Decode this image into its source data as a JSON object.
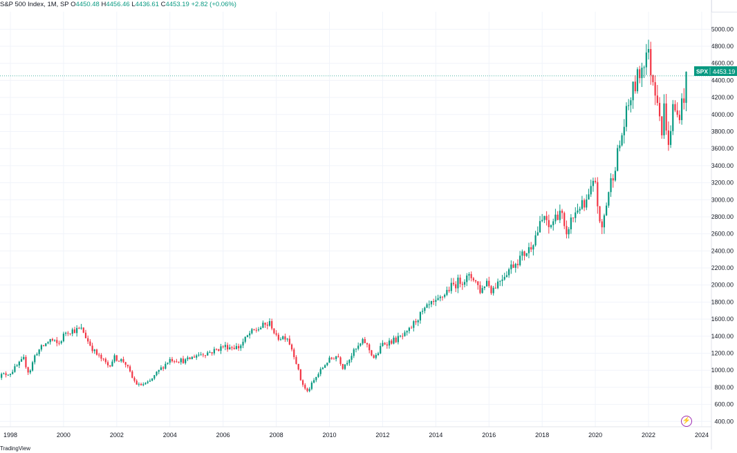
{
  "legend": {
    "title": "S&P 500 Index, 1M, SP",
    "open_label": "O",
    "open": "4450.48",
    "high_label": "H",
    "high": "4456.46",
    "low_label": "L",
    "low": "4436.61",
    "close_label": "C",
    "close": "4453.19",
    "change": "+2.82 (+0.06%)"
  },
  "price_tag": {
    "symbol": "SPX",
    "value": "4453.19"
  },
  "footer": {
    "brand": "TradingView"
  },
  "icons": {
    "lightning": "lightning-icon"
  },
  "colors": {
    "up": "#089981",
    "down": "#f23645",
    "grid": "#f0f3fa",
    "accent": "#9c27b0"
  },
  "chart_data": {
    "type": "candlestick",
    "title": "S&P 500 Index, 1M, SP",
    "xlabel": "",
    "ylabel": "",
    "ylim": [
      250,
      5100
    ],
    "xlim": [
      1997.5,
      2024.3
    ],
    "y_ticks": [
      "400.00",
      "600.00",
      "800.00",
      "1000.00",
      "1200.00",
      "1400.00",
      "1600.00",
      "1800.00",
      "2000.00",
      "2200.00",
      "2400.00",
      "2600.00",
      "2800.00",
      "3000.00",
      "3200.00",
      "3400.00",
      "3600.00",
      "3800.00",
      "4000.00",
      "4200.00",
      "4400.00",
      "4600.00",
      "4800.00",
      "5000.00"
    ],
    "x_ticks": [
      "1998",
      "2000",
      "2002",
      "2004",
      "2006",
      "2008",
      "2010",
      "2012",
      "2014",
      "2016",
      "2018",
      "2020",
      "2022",
      "2024"
    ],
    "last_close": 4453.19,
    "series_close": [
      [
        1997.5,
        930
      ],
      [
        1998.0,
        970
      ],
      [
        1998.5,
        1130
      ],
      [
        1998.7,
        960
      ],
      [
        1998.95,
        1200
      ],
      [
        1999.5,
        1360
      ],
      [
        1999.8,
        1300
      ],
      [
        2000.1,
        1460
      ],
      [
        2000.7,
        1480
      ],
      [
        2000.9,
        1350
      ],
      [
        2001.2,
        1200
      ],
      [
        2001.7,
        1050
      ],
      [
        2001.9,
        1150
      ],
      [
        2002.3,
        1100
      ],
      [
        2002.6,
        900
      ],
      [
        2002.8,
        820
      ],
      [
        2003.2,
        850
      ],
      [
        2003.6,
        1000
      ],
      [
        2004.0,
        1130
      ],
      [
        2004.6,
        1110
      ],
      [
        2005.0,
        1180
      ],
      [
        2005.6,
        1220
      ],
      [
        2006.0,
        1280
      ],
      [
        2006.6,
        1270
      ],
      [
        2007.0,
        1430
      ],
      [
        2007.5,
        1520
      ],
      [
        2007.8,
        1550
      ],
      [
        2008.0,
        1380
      ],
      [
        2008.4,
        1400
      ],
      [
        2008.7,
        1160
      ],
      [
        2008.9,
        900
      ],
      [
        2009.15,
        740
      ],
      [
        2009.5,
        920
      ],
      [
        2009.9,
        1100
      ],
      [
        2010.3,
        1180
      ],
      [
        2010.5,
        1040
      ],
      [
        2010.9,
        1210
      ],
      [
        2011.3,
        1350
      ],
      [
        2011.7,
        1130
      ],
      [
        2012.0,
        1310
      ],
      [
        2012.5,
        1360
      ],
      [
        2012.9,
        1420
      ],
      [
        2013.3,
        1610
      ],
      [
        2013.8,
        1770
      ],
      [
        2014.0,
        1780
      ],
      [
        2014.5,
        1960
      ],
      [
        2014.9,
        2050
      ],
      [
        2015.4,
        2100
      ],
      [
        2015.7,
        1920
      ],
      [
        2015.9,
        2060
      ],
      [
        2016.1,
        1940
      ],
      [
        2016.5,
        2100
      ],
      [
        2016.9,
        2240
      ],
      [
        2017.5,
        2420
      ],
      [
        2017.9,
        2680
      ],
      [
        2018.1,
        2820
      ],
      [
        2018.2,
        2640
      ],
      [
        2018.7,
        2900
      ],
      [
        2018.9,
        2500
      ],
      [
        2019.0,
        2700
      ],
      [
        2019.4,
        2940
      ],
      [
        2019.6,
        2900
      ],
      [
        2020.0,
        3230
      ],
      [
        2020.2,
        2580
      ],
      [
        2020.5,
        3100
      ],
      [
        2020.9,
        3620
      ],
      [
        2021.3,
        4180
      ],
      [
        2021.7,
        4520
      ],
      [
        2021.95,
        4770
      ],
      [
        2022.1,
        4500
      ],
      [
        2022.4,
        4130
      ],
      [
        2022.5,
        3780
      ],
      [
        2022.6,
        4130
      ],
      [
        2022.75,
        3590
      ],
      [
        2022.9,
        4080
      ],
      [
        2023.1,
        3970
      ],
      [
        2023.3,
        4170
      ],
      [
        2023.45,
        4450
      ]
    ],
    "annotations": []
  }
}
